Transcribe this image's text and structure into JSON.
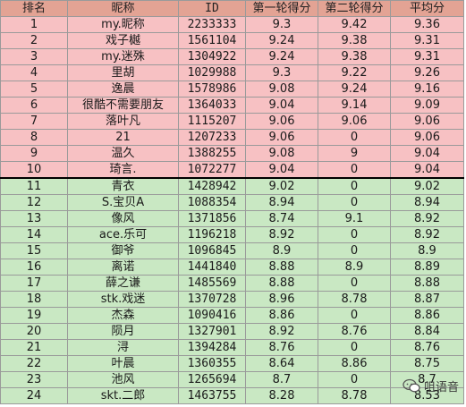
{
  "table": {
    "headers": [
      "排名",
      "昵称",
      "ID",
      "第一轮得分",
      "第二轮得分",
      "平均分"
    ],
    "top_rows": [
      [
        "1",
        "my.昵称",
        "2233333",
        "9.3",
        "9.42",
        "9.36"
      ],
      [
        "2",
        "戏子樾",
        "1561104",
        "9.24",
        "9.38",
        "9.31"
      ],
      [
        "3",
        "my.迷殊",
        "1304922",
        "9.24",
        "9.38",
        "9.31"
      ],
      [
        "4",
        "里胡",
        "1029988",
        "9.3",
        "9.22",
        "9.26"
      ],
      [
        "5",
        "逸晨",
        "1578986",
        "9.08",
        "9.24",
        "9.16"
      ],
      [
        "6",
        "很酷不需要朋友",
        "1364033",
        "9.04",
        "9.14",
        "9.09"
      ],
      [
        "7",
        "落叶凡",
        "1115207",
        "9.06",
        "9.06",
        "9.06"
      ],
      [
        "8",
        "21",
        "1207233",
        "9.06",
        "0",
        "9.06"
      ],
      [
        "9",
        "温久",
        "1388255",
        "9.08",
        "9",
        "9.04"
      ],
      [
        "10",
        "琦言.",
        "1072277",
        "9.04",
        "0",
        "9.04"
      ]
    ],
    "other_rows": [
      [
        "11",
        "青衣",
        "1428942",
        "9.02",
        "0",
        "9.02"
      ],
      [
        "12",
        "S.宝贝A",
        "1088354",
        "8.94",
        "0",
        "8.94"
      ],
      [
        "13",
        "像风",
        "1371856",
        "8.74",
        "9.1",
        "8.92"
      ],
      [
        "14",
        "ace.乐可",
        "1196218",
        "8.92",
        "0",
        "8.92"
      ],
      [
        "15",
        "御爷",
        "1096845",
        "8.9",
        "0",
        "8.9"
      ],
      [
        "16",
        "离诺",
        "1441840",
        "8.88",
        "8.9",
        "8.89"
      ],
      [
        "17",
        "薛之谦",
        "1485569",
        "8.88",
        "0",
        "8.88"
      ],
      [
        "18",
        "stk.戏迷",
        "1370728",
        "8.96",
        "8.78",
        "8.87"
      ],
      [
        "19",
        "杰森",
        "1090416",
        "8.86",
        "0",
        "8.86"
      ],
      [
        "20",
        "陨月",
        "1327901",
        "8.92",
        "8.76",
        "8.84"
      ],
      [
        "21",
        "浔",
        "1394284",
        "8.76",
        "0",
        "8.76"
      ],
      [
        "22",
        "叶晨",
        "1360355",
        "8.64",
        "8.86",
        "8.75"
      ],
      [
        "23",
        "池风",
        "1265694",
        "8.7",
        "0",
        "8.7"
      ],
      [
        "24",
        "skt.二郎",
        "1463755",
        "8.28",
        "8.78",
        "8.53"
      ]
    ]
  },
  "watermark": {
    "text": "咀语音",
    "icon": "chat-bubble-icon"
  }
}
